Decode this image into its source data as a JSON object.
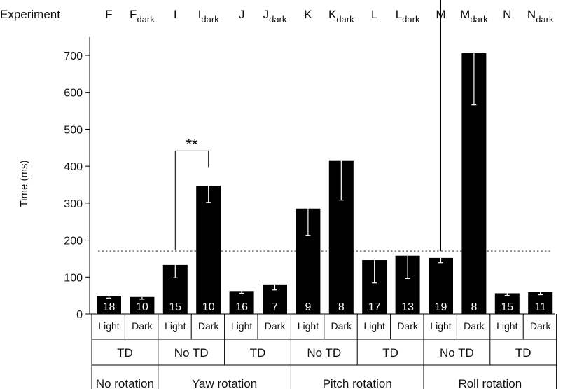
{
  "chart_data": {
    "type": "bar",
    "ylabel": "Time (ms)",
    "ylim": [
      0,
      750
    ],
    "yticks": [
      0,
      100,
      200,
      300,
      400,
      500,
      600,
      700
    ],
    "grid": false,
    "experiment_label": "Experiment",
    "experiments": [
      {
        "base": "F",
        "sub": ""
      },
      {
        "base": "F",
        "sub": "dark"
      },
      {
        "base": "I",
        "sub": ""
      },
      {
        "base": "I",
        "sub": "dark"
      },
      {
        "base": "J",
        "sub": ""
      },
      {
        "base": "J",
        "sub": "dark"
      },
      {
        "base": "K",
        "sub": ""
      },
      {
        "base": "K",
        "sub": "dark"
      },
      {
        "base": "L",
        "sub": ""
      },
      {
        "base": "L",
        "sub": "dark"
      },
      {
        "base": "M",
        "sub": ""
      },
      {
        "base": "M",
        "sub": "dark"
      },
      {
        "base": "N",
        "sub": ""
      },
      {
        "base": "N",
        "sub": "dark"
      }
    ],
    "conditions": [
      "Light",
      "Dark",
      "Light",
      "Dark",
      "Light",
      "Dark",
      "Light",
      "Dark",
      "Light",
      "Dark",
      "Light",
      "Dark",
      "Light",
      "Dark"
    ],
    "values": [
      48,
      46,
      133,
      347,
      62,
      80,
      285,
      416,
      146,
      158,
      152,
      706,
      56,
      59
    ],
    "errors": [
      5,
      6,
      35,
      45,
      6,
      15,
      72,
      108,
      62,
      62,
      13,
      140,
      6,
      7
    ],
    "n": [
      "18",
      "10",
      "15",
      "10",
      "16",
      "7",
      "9",
      "8",
      "17",
      "13",
      "19",
      "8",
      "15",
      "11"
    ],
    "td_groups": [
      {
        "label": "TD",
        "span": 2
      },
      {
        "label": "No TD",
        "span": 2
      },
      {
        "label": "TD",
        "span": 2
      },
      {
        "label": "No TD",
        "span": 2
      },
      {
        "label": "TD",
        "span": 2
      },
      {
        "label": "No TD",
        "span": 2
      },
      {
        "label": "TD",
        "span": 2
      }
    ],
    "rotation_groups": [
      {
        "label": "No rotation",
        "span": 2
      },
      {
        "label": "Yaw rotation",
        "span": 4
      },
      {
        "label": "Pitch rotation",
        "span": 4
      },
      {
        "label": "Roll rotation",
        "span": 4
      }
    ],
    "reference_line": 170,
    "significance": [
      {
        "from": 2,
        "to": 3,
        "label": "**"
      },
      {
        "from": 10,
        "to": 11,
        "label": "**"
      }
    ],
    "colors": {
      "bar": "#000000",
      "error_bar": "#ffffff",
      "reference_line": "#8c8c8c",
      "n_text": "#ffffff"
    }
  }
}
